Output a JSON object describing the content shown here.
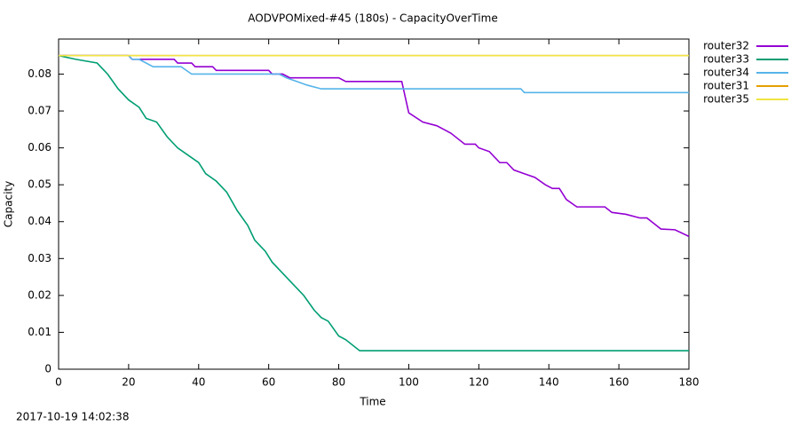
{
  "chart_data": {
    "type": "line",
    "title": "AODVPOMixed-#45 (180s) - CapacityOverTime",
    "x_label": "Time",
    "y_label": "Capacity",
    "timestamp": "2017-10-19 14:02:38",
    "xlim": [
      0,
      180
    ],
    "xticks": [
      0,
      20,
      40,
      60,
      80,
      100,
      120,
      140,
      160,
      180
    ],
    "ylim": [
      0,
      0.0895
    ],
    "yticks": [
      0,
      0.01,
      0.02,
      0.03,
      0.04,
      0.05,
      0.06,
      0.07,
      0.08
    ],
    "grid": false,
    "legend": "outside-right",
    "series": [
      {
        "name": "router32",
        "color": "#9400d3",
        "x": [
          0,
          20,
          21,
          33,
          34,
          38,
          39,
          44,
          45,
          60,
          61,
          64,
          66,
          80,
          82,
          98,
          100,
          104,
          108,
          110,
          112,
          116,
          119,
          120,
          123,
          126,
          128,
          130,
          133,
          136,
          139,
          141,
          143,
          145,
          148,
          156,
          158,
          162,
          166,
          168,
          172,
          176,
          180
        ],
        "values": [
          0.085,
          0.085,
          0.084,
          0.084,
          0.083,
          0.083,
          0.082,
          0.082,
          0.081,
          0.081,
          0.08,
          0.08,
          0.079,
          0.079,
          0.078,
          0.078,
          0.0695,
          0.067,
          0.066,
          0.065,
          0.064,
          0.061,
          0.061,
          0.06,
          0.059,
          0.056,
          0.056,
          0.054,
          0.053,
          0.052,
          0.05,
          0.049,
          0.049,
          0.046,
          0.044,
          0.044,
          0.0425,
          0.042,
          0.041,
          0.041,
          0.038,
          0.0378,
          0.036
        ]
      },
      {
        "name": "router33",
        "color": "#009e73",
        "x": [
          0,
          5,
          11,
          14,
          17,
          20,
          23,
          25,
          28,
          31,
          34,
          37,
          40,
          42,
          45,
          48,
          51,
          54,
          56,
          59,
          61,
          64,
          67,
          70,
          73,
          75,
          77,
          80,
          82,
          86,
          180
        ],
        "values": [
          0.085,
          0.084,
          0.083,
          0.08,
          0.076,
          0.073,
          0.071,
          0.068,
          0.067,
          0.063,
          0.06,
          0.058,
          0.056,
          0.053,
          0.051,
          0.048,
          0.043,
          0.039,
          0.035,
          0.032,
          0.029,
          0.026,
          0.023,
          0.02,
          0.016,
          0.014,
          0.013,
          0.009,
          0.008,
          0.005,
          0.005
        ]
      },
      {
        "name": "router34",
        "color": "#56b4e9",
        "x": [
          0,
          20,
          21,
          23,
          27,
          35,
          38,
          63,
          65,
          68,
          71,
          75,
          132,
          133,
          180
        ],
        "values": [
          0.085,
          0.085,
          0.084,
          0.084,
          0.082,
          0.082,
          0.08,
          0.08,
          0.079,
          0.078,
          0.077,
          0.076,
          0.076,
          0.075,
          0.075
        ]
      },
      {
        "name": "router31",
        "color": "#e69f00",
        "x": [
          0,
          180
        ],
        "values": [
          0.085,
          0.085
        ]
      },
      {
        "name": "router35",
        "color": "#f0e442",
        "x": [
          0,
          180
        ],
        "values": [
          0.085,
          0.085
        ]
      }
    ]
  }
}
